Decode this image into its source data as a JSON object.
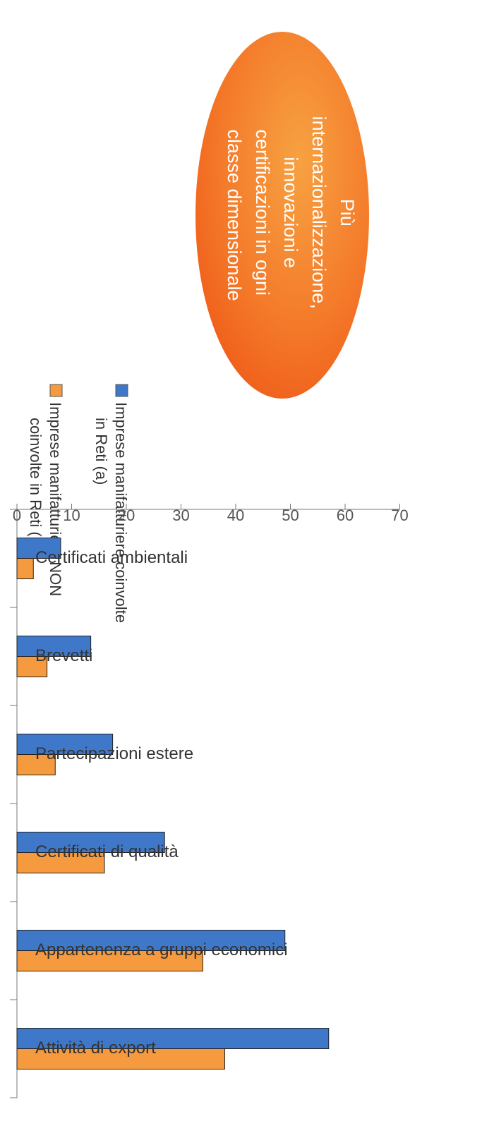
{
  "chart_data": {
    "type": "bar",
    "orientation": "horizontal",
    "rotated": "90deg clockwise (page displayed in portrait)",
    "categories": [
      "Certificati ambientali",
      "Brevetti",
      "Partecipazioni estere",
      "Certificati di qualità",
      "Appartenenza a gruppi economici",
      "Attività di export"
    ],
    "series": [
      {
        "name": "Imprese manifatturiere NON coinvolte in Reti (b)",
        "legend_lines": [
          "Imprese manifatturiere NON",
          "coinvolte in Reti (b)"
        ],
        "color": "#f59a3e",
        "values": [
          3,
          5.5,
          7,
          16,
          34,
          38
        ]
      },
      {
        "name": "Imprese manifatturiere coinvolte in Reti (a)",
        "legend_lines": [
          "Imprese manifatturiere coinvolte",
          "in Reti (a)"
        ],
        "color": "#3f78c8",
        "values": [
          8,
          13.5,
          17.5,
          27,
          49,
          57
        ]
      }
    ],
    "value_axis": {
      "range": [
        0,
        70
      ],
      "ticks": [
        "0",
        "10",
        "20",
        "30",
        "40",
        "50",
        "60",
        "70"
      ]
    },
    "grid": false,
    "legend_position": "top-left"
  },
  "callout": {
    "lines": [
      "Più",
      "internazionalizzazione,",
      "innovazioni e",
      "certificazioni in ogni",
      "classe dimensionale"
    ],
    "color": "#f06a1e"
  }
}
